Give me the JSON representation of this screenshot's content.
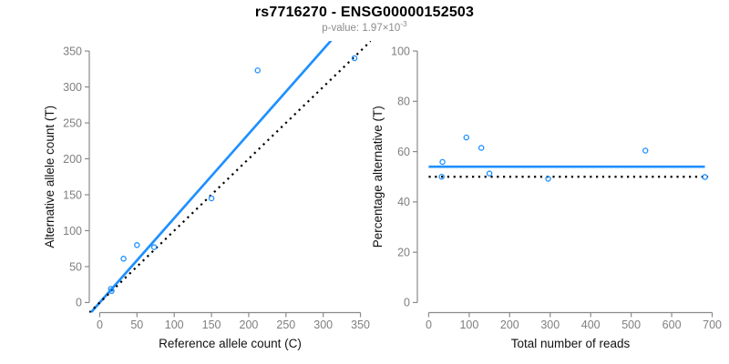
{
  "header": {
    "title": "rs7716270 - ENSG00000152503",
    "p_value_text": "p-value: 1.97×10",
    "p_value_exponent": "-3"
  },
  "colors": {
    "accent_blue": "#1E90FF",
    "axis_gray": "#8a8a8a",
    "tick_label_gray": "#7f7f7f",
    "axis_title_color": "#111111",
    "subtitle_gray": "#8c8c8c",
    "dotted_black": "#000000",
    "background": "#ffffff"
  },
  "chart_data": [
    {
      "name": "allele-counts-scatter",
      "type": "scatter",
      "xlabel": "Reference allele count (C)",
      "ylabel": "Alternative allele count (T)",
      "xlim": [
        0,
        350
      ],
      "ylim": [
        0,
        350
      ],
      "xticks": [
        0,
        50,
        100,
        150,
        200,
        250,
        300,
        350
      ],
      "yticks": [
        0,
        50,
        100,
        150,
        200,
        250,
        300,
        350
      ],
      "grid": false,
      "legend": null,
      "points": {
        "x": [
          16,
          15,
          32,
          50,
          73,
          150,
          212,
          342
        ],
        "y": [
          16,
          19,
          61,
          80,
          77,
          145,
          323,
          340
        ]
      },
      "lines": [
        {
          "name": "fitted-line",
          "kind": "through_origin",
          "slope": 1.174,
          "style": "solid",
          "color": "#1E90FF"
        },
        {
          "name": "identity-line",
          "kind": "through_origin",
          "slope": 1,
          "style": "dotted",
          "color": "#000000"
        }
      ]
    },
    {
      "name": "percentage-vs-total-scatter",
      "type": "scatter",
      "xlabel": "Total number of reads",
      "ylabel": "Percentage alternative (T)",
      "xlim": [
        0,
        700
      ],
      "ylim": [
        0,
        100
      ],
      "xticks": [
        0,
        100,
        200,
        300,
        400,
        500,
        600,
        700
      ],
      "yticks": [
        0,
        20,
        40,
        60,
        80,
        100
      ],
      "grid": false,
      "legend": null,
      "points": {
        "x": [
          32,
          34,
          93,
          130,
          150,
          295,
          535,
          682
        ],
        "y": [
          50.0,
          55.9,
          65.6,
          61.5,
          51.3,
          49.2,
          60.4,
          49.9
        ]
      },
      "lines": [
        {
          "name": "fitted-percentage-line",
          "kind": "horizontal",
          "y": 54,
          "x_range": [
            0,
            682
          ],
          "style": "solid",
          "color": "#1E90FF"
        },
        {
          "name": "null-50-percent-line",
          "kind": "horizontal",
          "y": 50,
          "x_range": [
            0,
            690
          ],
          "style": "dotted",
          "color": "#000000"
        }
      ]
    }
  ]
}
